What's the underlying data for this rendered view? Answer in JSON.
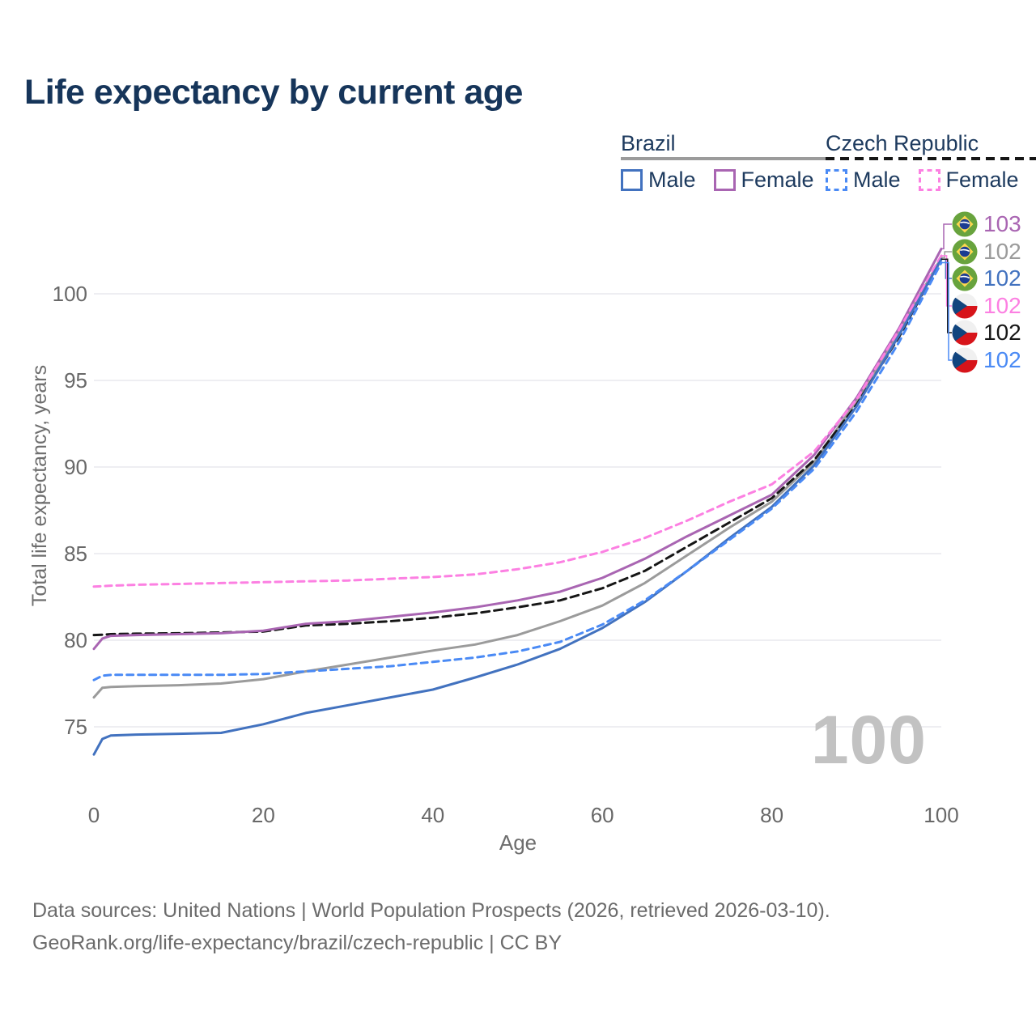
{
  "title": "Life expectancy by current age",
  "legend": {
    "brazil": {
      "name": "Brazil",
      "male": "Male",
      "female": "Female"
    },
    "czech": {
      "name": "Czech Republic",
      "male": "Male",
      "female": "Female"
    }
  },
  "end_labels": [
    {
      "value": "103",
      "series": "brazil_female",
      "flag": "brazil"
    },
    {
      "value": "102",
      "series": "brazil_total",
      "flag": "brazil"
    },
    {
      "value": "102",
      "series": "brazil_male",
      "flag": "brazil"
    },
    {
      "value": "102",
      "series": "czech_female",
      "flag": "czech"
    },
    {
      "value": "102",
      "series": "czech_total",
      "flag": "czech"
    },
    {
      "value": "102",
      "series": "czech_male",
      "flag": "czech"
    }
  ],
  "watermark": "100",
  "footer": {
    "line1": "Data sources: United Nations | World Population Prospects (2026, retrieved 2026-03-10).",
    "line2": "GeoRank.org/life-expectancy/brazil/czech-republic | CC BY"
  },
  "chart_data": {
    "type": "line",
    "title": "Life expectancy by current age",
    "xlabel": "Age",
    "ylabel": "Total life expectancy, years",
    "xlim": [
      0,
      100
    ],
    "ylim": [
      72.5,
      103.5
    ],
    "grid": "horizontal",
    "legend_position": "top-right",
    "xticks": [
      0,
      20,
      40,
      60,
      80,
      100
    ],
    "yticks": [
      75,
      80,
      85,
      90,
      95,
      100
    ],
    "xtick_labels": [
      "0",
      "20",
      "40",
      "60",
      "80",
      "100"
    ],
    "ytick_labels_top_down": [
      "100",
      "95",
      "90",
      "85",
      "80",
      "75"
    ],
    "x": [
      0,
      1,
      2,
      5,
      10,
      15,
      20,
      25,
      30,
      35,
      40,
      45,
      50,
      55,
      60,
      65,
      70,
      75,
      80,
      85,
      90,
      95,
      100
    ],
    "series": [
      {
        "name": "Brazil Total",
        "key": "brazil_total",
        "color": "#9b9b9b",
        "dash": "solid",
        "values": [
          76.7,
          77.25,
          77.3,
          77.35,
          77.4,
          77.5,
          77.75,
          78.2,
          78.6,
          79.0,
          79.4,
          79.75,
          80.3,
          81.1,
          82.0,
          83.3,
          84.9,
          86.5,
          88.0,
          90.3,
          93.8,
          97.8,
          102.1
        ]
      },
      {
        "name": "Czech Republic Total",
        "key": "czech_total",
        "color": "#161616",
        "dash": "dashed",
        "values": [
          80.3,
          80.32,
          80.35,
          80.38,
          80.4,
          80.45,
          80.5,
          80.85,
          80.95,
          81.1,
          81.3,
          81.55,
          81.9,
          82.3,
          83.0,
          84.0,
          85.4,
          86.8,
          88.2,
          90.4,
          93.6,
          97.5,
          102.0
        ]
      },
      {
        "name": "Brazil Female",
        "key": "brazil_female",
        "color": "#a965b2",
        "dash": "solid",
        "values": [
          79.5,
          80.1,
          80.25,
          80.3,
          80.35,
          80.4,
          80.55,
          80.95,
          81.1,
          81.35,
          81.6,
          81.9,
          82.3,
          82.8,
          83.6,
          84.7,
          86.0,
          87.2,
          88.4,
          90.7,
          94.0,
          98.0,
          102.6
        ]
      },
      {
        "name": "Czech Republic Female",
        "key": "czech_female",
        "color": "#fc80e2",
        "dash": "dashed",
        "values": [
          83.1,
          83.12,
          83.15,
          83.2,
          83.25,
          83.3,
          83.35,
          83.4,
          83.45,
          83.55,
          83.65,
          83.8,
          84.1,
          84.5,
          85.1,
          85.9,
          86.9,
          88.0,
          89.0,
          90.9,
          93.9,
          97.9,
          102.2
        ]
      },
      {
        "name": "Brazil Male",
        "key": "brazil_male",
        "color": "#4272bf",
        "dash": "solid",
        "values": [
          73.4,
          74.3,
          74.5,
          74.55,
          74.6,
          74.65,
          75.15,
          75.8,
          76.25,
          76.7,
          77.15,
          77.85,
          78.6,
          79.5,
          80.7,
          82.2,
          84.0,
          85.9,
          87.7,
          90.1,
          93.5,
          97.6,
          102.0
        ]
      },
      {
        "name": "Czech Republic Male",
        "key": "czech_male",
        "color": "#4a8af5",
        "dash": "dashed",
        "values": [
          77.7,
          77.95,
          78.0,
          78.0,
          78.0,
          78.0,
          78.05,
          78.2,
          78.35,
          78.5,
          78.75,
          79.0,
          79.35,
          79.9,
          80.9,
          82.3,
          84.0,
          85.8,
          87.6,
          89.9,
          93.2,
          97.2,
          101.8
        ]
      }
    ]
  }
}
